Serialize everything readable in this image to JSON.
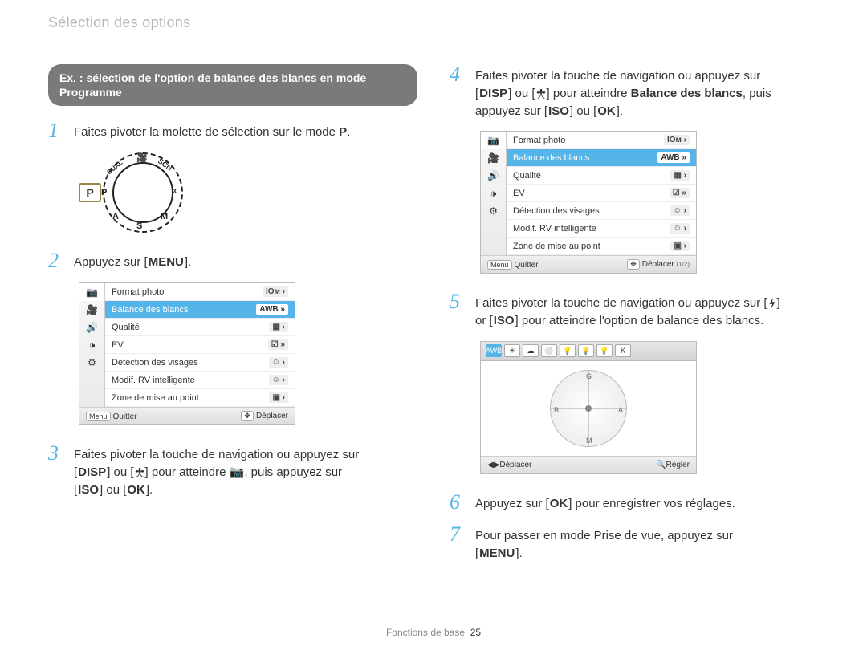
{
  "colors": {
    "accent": "#55b5e8",
    "callout_bg": "#7a7a7a",
    "header_gray": "#b8b8b8",
    "text": "#333333",
    "dial_highlight": "#988245"
  },
  "header": "Sélection des options",
  "callout": "Ex. : sélection de l'option de balance des blancs en mode Programme",
  "steps": {
    "s1": {
      "num": "1",
      "text_a": "Faites pivoter la molette de sélection sur le mode ",
      "text_b": "P",
      "text_c": "."
    },
    "s2": {
      "num": "2",
      "text_a": "Appuyez sur [",
      "key": "MENU",
      "text_b": "]."
    },
    "s3": {
      "num": "3",
      "l1": "Faites pivoter la touche de navigation ou appuyez sur",
      "l2_a": "[",
      "l2_key1": "DISP",
      "l2_b": "] ou [",
      "l2_icon": "flower",
      "l2_c": "] pour atteindre ",
      "l2_cam": "📷",
      "l2_d": ", puis appuyez sur",
      "l3_a": "[",
      "l3_key1": "ISO",
      "l3_b": "] ou [",
      "l3_key2": "OK",
      "l3_c": "]."
    },
    "s4": {
      "num": "4",
      "l1": "Faites pivoter la touche de navigation ou appuyez sur",
      "l2_a": "[",
      "l2_key1": "DISP",
      "l2_b": "] ou [",
      "l2_icon": "flower",
      "l2_c": "] pour atteindre ",
      "l2_bold": "Balance des blancs",
      "l2_d": ", puis",
      "l3_a": "appuyez sur [",
      "l3_key1": "ISO",
      "l3_b": "] ou [",
      "l3_key2": "OK",
      "l3_c": "]."
    },
    "s5": {
      "num": "5",
      "l1_a": "Faites pivoter la touche de navigation ou appuyez sur [",
      "l1_icon": "bolt",
      "l1_b": "]",
      "l2_a": "or [",
      "l2_key": "ISO",
      "l2_b": "] pour atteindre l'option de balance des blancs."
    },
    "s6": {
      "num": "6",
      "text_a": "Appuyez sur [",
      "key": "OK",
      "text_b": "] pour enregistrer vos réglages."
    },
    "s7": {
      "num": "7",
      "l1": "Pour passer en mode Prise de vue, appuyez sur",
      "l2_a": "[",
      "l2_key": "MENU",
      "l2_b": "]."
    }
  },
  "dial": {
    "labels": [
      "P",
      "A",
      "S",
      "M",
      "DUAL",
      "SCN"
    ],
    "highlighted": "P"
  },
  "menu1": {
    "side_icons": [
      "📷",
      "🎥",
      "🔊",
      "🕩",
      "⚙"
    ],
    "rows": [
      {
        "label": "Format photo",
        "value": "IOм ›",
        "selected": false
      },
      {
        "label": "Balance des blancs",
        "value": "AWB »",
        "selected": true
      },
      {
        "label": "Qualité",
        "value": "▦ ›",
        "selected": false
      },
      {
        "label": "EV",
        "value": "☑ »",
        "selected": false
      },
      {
        "label": "Détection des visages",
        "value": "☺ ›",
        "selected": false
      },
      {
        "label": "Modif. RV intelligente",
        "value": "☺ ›",
        "selected": false
      },
      {
        "label": "Zone de mise au point",
        "value": "▣ ›",
        "selected": false
      }
    ],
    "footer_left_tag": "Menu",
    "footer_left": "Quitter",
    "footer_right_tag": "✥",
    "footer_right": "Déplacer",
    "page_indicator": ""
  },
  "menu2": {
    "side_icons": [
      "📷",
      "🎥",
      "🔊",
      "🕩",
      "⚙"
    ],
    "rows": [
      {
        "label": "Format photo",
        "value": "IOм ›",
        "selected": false
      },
      {
        "label": "Balance des blancs",
        "value": "AWB »",
        "selected": true
      },
      {
        "label": "Qualité",
        "value": "▦ ›",
        "selected": false
      },
      {
        "label": "EV",
        "value": "☑ »",
        "selected": false
      },
      {
        "label": "Détection des visages",
        "value": "☺ ›",
        "selected": false
      },
      {
        "label": "Modif. RV intelligente",
        "value": "☺ ›",
        "selected": false
      },
      {
        "label": "Zone de mise au point",
        "value": "▣ ›",
        "selected": false
      }
    ],
    "footer_left_tag": "Menu",
    "footer_left": "Quitter",
    "footer_right_tag": "✥",
    "footer_right": "Déplacer",
    "page_indicator": "(1/2)"
  },
  "wb": {
    "icons": [
      "AWB",
      "☀",
      "☁",
      "⚪",
      "💡",
      "💡",
      "💡",
      "K"
    ],
    "selected_index": 0,
    "circle_labels": {
      "top": "G",
      "right": "A",
      "bottom": "M",
      "left": "B"
    },
    "footer_left_tag": "◀▶",
    "footer_left": "Déplacer",
    "footer_right_tag": "🔍",
    "footer_right": "Régler"
  },
  "footer": {
    "section": "Fonctions de base",
    "page": "25"
  }
}
